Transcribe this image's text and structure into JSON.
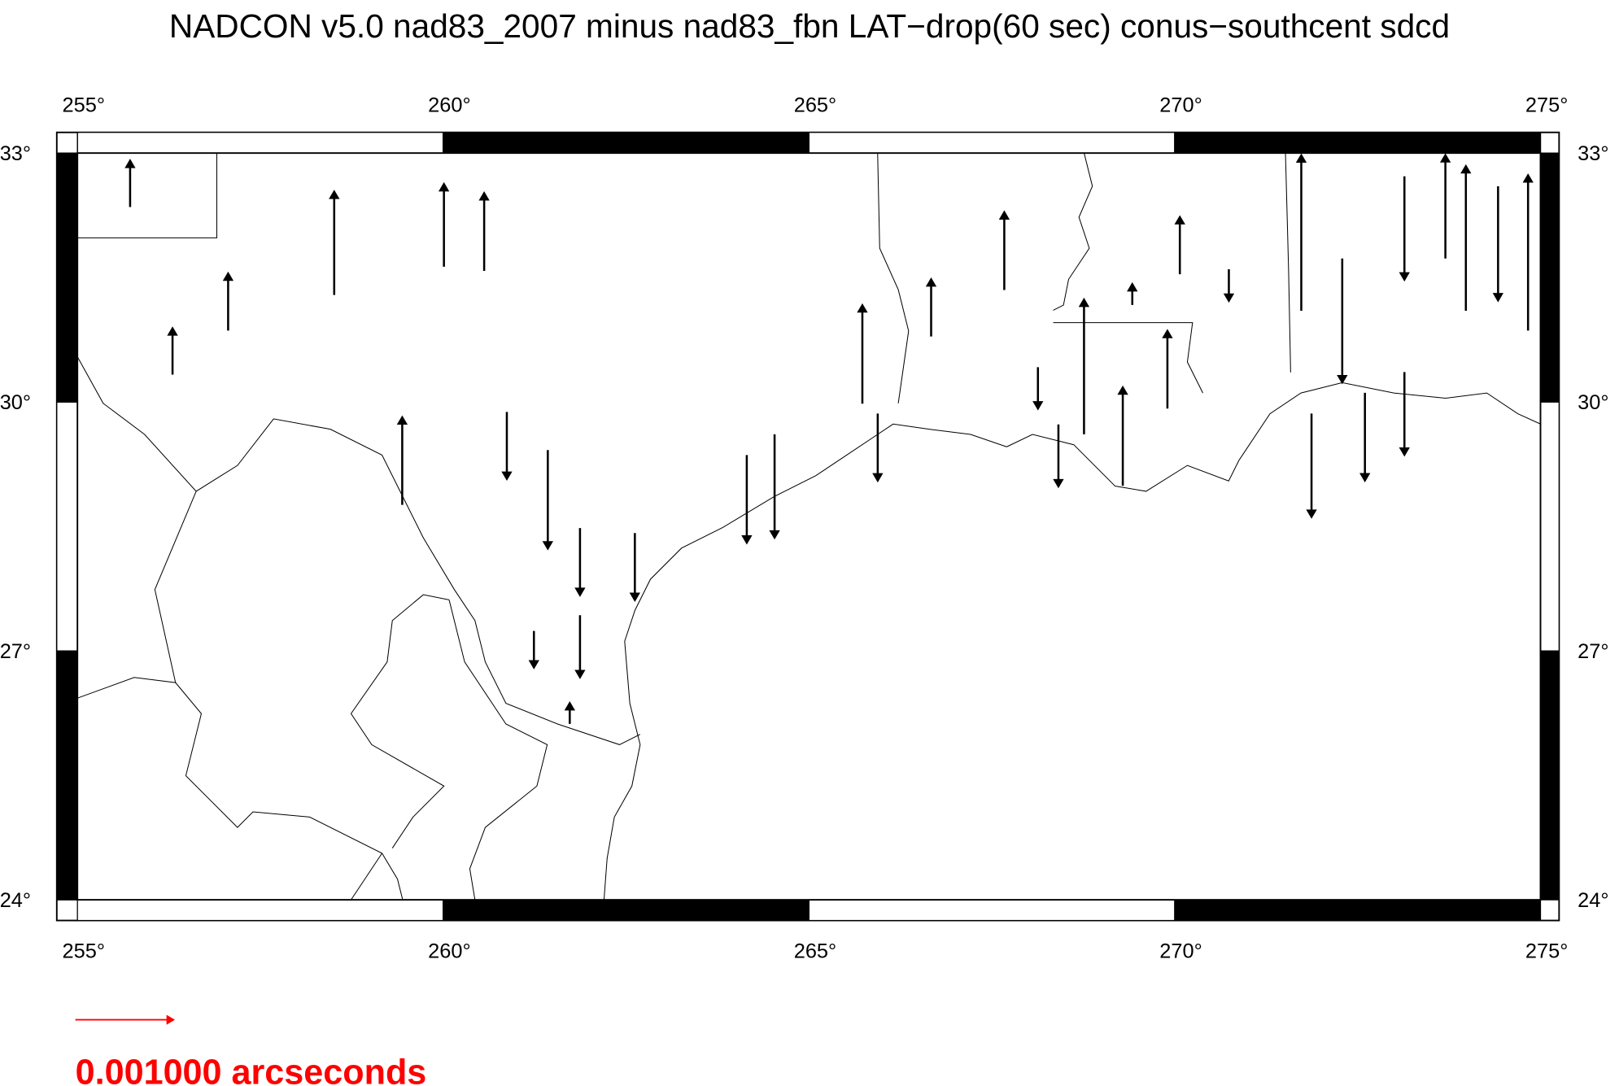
{
  "title": "NADCON v5.0 nad83_2007 minus nad83_fbn LAT−drop(60 sec) conus−southcent sdcd",
  "map": {
    "xlim": [
      255,
      275
    ],
    "ylim": [
      24,
      33
    ],
    "xticks": [
      {
        "value": 255,
        "label": "255°"
      },
      {
        "value": 260,
        "label": "260°"
      },
      {
        "value": 265,
        "label": "265°"
      },
      {
        "value": 270,
        "label": "270°"
      },
      {
        "value": 275,
        "label": "275°"
      }
    ],
    "yticks": [
      {
        "value": 24,
        "label": "24°"
      },
      {
        "value": 27,
        "label": "27°"
      },
      {
        "value": 30,
        "label": "30°"
      },
      {
        "value": 33,
        "label": "33°"
      }
    ],
    "vectors": [
      {
        "lon": 255.72,
        "lat": 32.35,
        "dlat": 0.00047
      },
      {
        "lon": 257.06,
        "lat": 30.86,
        "dlat": 0.00058
      },
      {
        "lon": 256.3,
        "lat": 30.33,
        "dlat": 0.00047
      },
      {
        "lon": 258.51,
        "lat": 31.29,
        "dlat": 0.00105
      },
      {
        "lon": 259.44,
        "lat": 28.76,
        "dlat": 0.00089
      },
      {
        "lon": 260.01,
        "lat": 31.63,
        "dlat": 0.00084
      },
      {
        "lon": 260.56,
        "lat": 31.58,
        "dlat": 0.00079
      },
      {
        "lon": 260.87,
        "lat": 29.88,
        "dlat": -0.00068
      },
      {
        "lon": 261.43,
        "lat": 29.42,
        "dlat": -0.001
      },
      {
        "lon": 261.87,
        "lat": 28.48,
        "dlat": -0.00068
      },
      {
        "lon": 262.62,
        "lat": 28.42,
        "dlat": -0.00068
      },
      {
        "lon": 261.24,
        "lat": 27.24,
        "dlat": -0.00037
      },
      {
        "lon": 261.87,
        "lat": 27.43,
        "dlat": -0.00063
      },
      {
        "lon": 261.73,
        "lat": 26.12,
        "dlat": 0.00021
      },
      {
        "lon": 264.15,
        "lat": 29.36,
        "dlat": -0.00089
      },
      {
        "lon": 264.53,
        "lat": 29.61,
        "dlat": -0.00105
      },
      {
        "lon": 265.94,
        "lat": 29.86,
        "dlat": -0.00068
      },
      {
        "lon": 265.73,
        "lat": 29.98,
        "dlat": 0.001
      },
      {
        "lon": 266.67,
        "lat": 30.79,
        "dlat": 0.00058
      },
      {
        "lon": 267.67,
        "lat": 31.35,
        "dlat": 0.00079
      },
      {
        "lon": 268.41,
        "lat": 29.73,
        "dlat": -0.00063
      },
      {
        "lon": 268.76,
        "lat": 29.61,
        "dlat": 0.00137
      },
      {
        "lon": 269.29,
        "lat": 28.99,
        "dlat": 0.001
      },
      {
        "lon": 270.07,
        "lat": 31.54,
        "dlat": 0.00058
      },
      {
        "lon": 269.9,
        "lat": 29.92,
        "dlat": 0.00079
      },
      {
        "lon": 271.87,
        "lat": 29.86,
        "dlat": -0.00105
      },
      {
        "lon": 271.73,
        "lat": 31.1,
        "dlat": 0.00158
      },
      {
        "lon": 272.6,
        "lat": 30.11,
        "dlat": -0.00089
      },
      {
        "lon": 273.14,
        "lat": 30.36,
        "dlat": -0.00084
      },
      {
        "lon": 273.98,
        "lat": 31.1,
        "dlat": 0.00147
      },
      {
        "lon": 274.83,
        "lat": 30.86,
        "dlat": 0.00158
      },
      {
        "lon": 272.29,
        "lat": 31.73,
        "dlat": -0.00126
      },
      {
        "lon": 273.7,
        "lat": 31.73,
        "dlat": 0.00105
      },
      {
        "lon": 270.74,
        "lat": 31.6,
        "dlat": -0.00032
      },
      {
        "lon": 268.13,
        "lat": 30.42,
        "dlat": -0.00042
      },
      {
        "lon": 269.42,
        "lat": 31.17,
        "dlat": 0.00021
      },
      {
        "lon": 273.14,
        "lat": 32.72,
        "dlat": -0.00105
      },
      {
        "lon": 274.42,
        "lat": 32.6,
        "dlat": -0.00116
      }
    ]
  },
  "scale": {
    "value": 0.001,
    "label": "0.001000 arcseconds",
    "color": "#ff0000"
  }
}
